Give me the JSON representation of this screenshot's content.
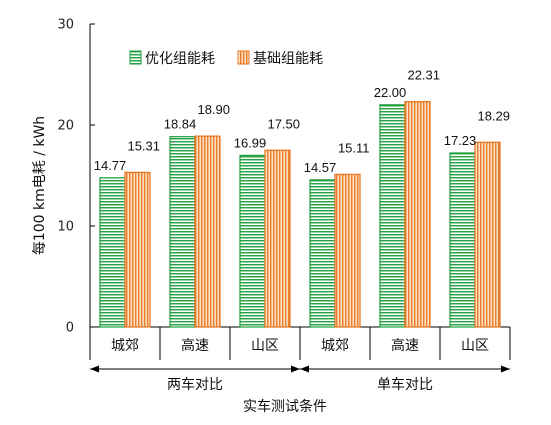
{
  "chart_data": {
    "type": "bar",
    "ylabel": "每100 km电耗 / kWh",
    "xlabel": "实车测试条件",
    "ylim": [
      0,
      30
    ],
    "yticks": [
      0,
      10,
      20,
      30
    ],
    "groups": [
      {
        "label": "两车对比",
        "categories": [
          "城郊",
          "高速",
          "山区"
        ]
      },
      {
        "label": "单车对比",
        "categories": [
          "城郊",
          "高速",
          "山区"
        ]
      }
    ],
    "categories": [
      "城郊",
      "高速",
      "山区",
      "城郊",
      "高速",
      "山区"
    ],
    "series": [
      {
        "name": "优化组能耗",
        "color": "#1e9e3c",
        "values": [
          14.77,
          18.84,
          16.99,
          14.57,
          22.0,
          17.23
        ],
        "labels": [
          "14.77",
          "18.84",
          "16.99",
          "14.57",
          "22.00",
          "17.23"
        ]
      },
      {
        "name": "基础组能耗",
        "color": "#e8721c",
        "values": [
          15.31,
          18.9,
          17.5,
          15.11,
          22.31,
          18.29
        ],
        "labels": [
          "15.31",
          "18.90",
          "17.50",
          "15.11",
          "22.31",
          "18.29"
        ]
      }
    ],
    "legend_position": "top-left",
    "grid": false
  }
}
